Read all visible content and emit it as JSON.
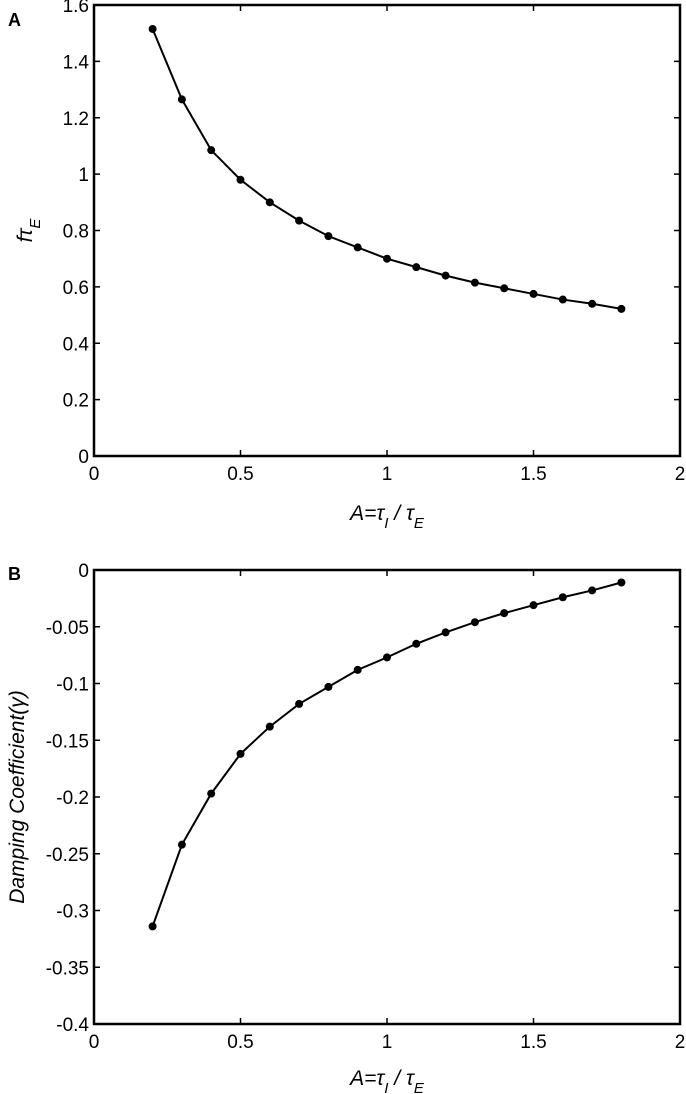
{
  "chart_data": [
    {
      "panel_label": "A",
      "type": "line",
      "xlabel": {
        "main": "A=τ",
        "sub1": "I",
        "mid": " / τ",
        "sub2": "E"
      },
      "ylabel": {
        "main": "fτ",
        "sub": "E"
      },
      "xlim": [
        0,
        2
      ],
      "ylim": [
        0,
        1.6
      ],
      "x_ticks": [
        "0",
        "0.5",
        "1",
        "1.5",
        "2"
      ],
      "y_ticks": [
        "0",
        "0.2",
        "0.4",
        "0.6",
        "0.8",
        "1",
        "1.2",
        "1.4",
        "1.6"
      ],
      "x": [
        0.2,
        0.3,
        0.4,
        0.5,
        0.6,
        0.7,
        0.8,
        0.9,
        1.0,
        1.1,
        1.2,
        1.3,
        1.4,
        1.5,
        1.6,
        1.7,
        1.8
      ],
      "y": [
        1.515,
        1.265,
        1.085,
        0.98,
        0.9,
        0.835,
        0.78,
        0.74,
        0.7,
        0.67,
        0.64,
        0.615,
        0.595,
        0.575,
        0.555,
        0.54,
        0.522
      ],
      "grid": false,
      "markers": "filled-circle"
    },
    {
      "panel_label": "B",
      "type": "line",
      "xlabel": {
        "main": "A=τ",
        "sub1": "I",
        "mid": " / τ",
        "sub2": "E"
      },
      "ylabel": {
        "main": "Damping Coefficient(γ)"
      },
      "xlim": [
        0,
        2
      ],
      "ylim": [
        -0.4,
        0
      ],
      "x_ticks": [
        "0",
        "0.5",
        "1",
        "1.5",
        "2"
      ],
      "y_ticks": [
        "-0.4",
        "-0.35",
        "-0.3",
        "-0.25",
        "-0.2",
        "-0.15",
        "-0.1",
        "-0.05",
        "0"
      ],
      "x": [
        0.2,
        0.3,
        0.4,
        0.5,
        0.6,
        0.7,
        0.8,
        0.9,
        1.0,
        1.1,
        1.2,
        1.3,
        1.4,
        1.5,
        1.6,
        1.7,
        1.8
      ],
      "y": [
        -0.314,
        -0.242,
        -0.197,
        -0.162,
        -0.138,
        -0.118,
        -0.103,
        -0.088,
        -0.077,
        -0.065,
        -0.055,
        -0.046,
        -0.038,
        -0.031,
        -0.024,
        -0.018,
        -0.011
      ],
      "grid": false,
      "markers": "filled-circle"
    }
  ]
}
